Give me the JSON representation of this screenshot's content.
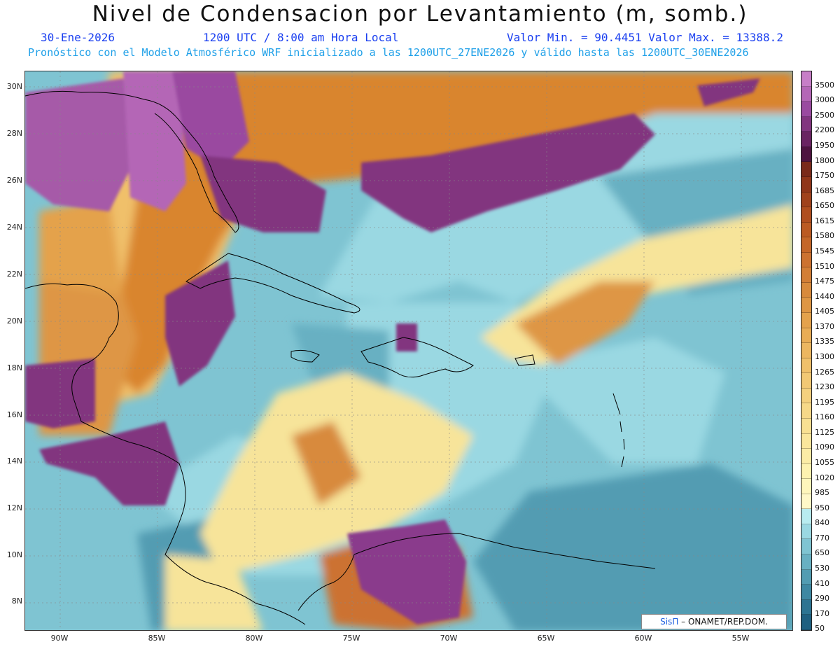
{
  "title": "Nivel de Condensacion por Levantamiento (m, somb.)",
  "subtitle_date": "30-Ene-2026",
  "subtitle_time": "1200 UTC / 8:00 am Hora Local",
  "subtitle_minmax": "Valor Min. = 90.4451   Valor Max. = 13388.2",
  "subtitle_forecast": "Pronóstico con el Modelo Atmosférico WRF inicializado a las 1200UTC_27ENE2026 y válido hasta las  1200UTC_30ENE2026",
  "credit": {
    "sis": "SisΠ",
    "rest": " – ONAMET/REP.DOM."
  },
  "lat_labels": [
    "30N",
    "28N",
    "26N",
    "24N",
    "22N",
    "20N",
    "18N",
    "16N",
    "14N",
    "12N",
    "10N",
    "8N"
  ],
  "lon_labels": [
    "90W",
    "85W",
    "80W",
    "75W",
    "70W",
    "65W",
    "60W",
    "55W"
  ],
  "colorbar": {
    "labels": [
      "3500",
      "3000",
      "2500",
      "2200",
      "1950",
      "1800",
      "1750",
      "1685",
      "1650",
      "1615",
      "1580",
      "1545",
      "1510",
      "1475",
      "1440",
      "1405",
      "1370",
      "1335",
      "1300",
      "1265",
      "1230",
      "1195",
      "1160",
      "1125",
      "1090",
      "1055",
      "1020",
      "985",
      "950",
      "840",
      "770",
      "650",
      "530",
      "410",
      "290",
      "170",
      "50"
    ],
    "colors": [
      "#c77ec7",
      "#b466b6",
      "#9a4aa0",
      "#82357f",
      "#6a2462",
      "#4e1440",
      "#7a2a1a",
      "#90361a",
      "#a0421c",
      "#b04e1f",
      "#bb5a22",
      "#c46628",
      "#cc7230",
      "#d27e36",
      "#d88a3c",
      "#de9644",
      "#e4a24c",
      "#e8ac55",
      "#ecb660",
      "#f0c06a",
      "#f2c874",
      "#f4d07e",
      "#f6d888",
      "#f8e092",
      "#fae69c",
      "#fbeca6",
      "#fdf2b0",
      "#fef6bc",
      "#fff8c8",
      "#b8ecf0",
      "#9ad8e2",
      "#7fc4d2",
      "#68b0c2",
      "#529cb2",
      "#3e88a2",
      "#2d7492",
      "#1f6080"
    ]
  },
  "colors": {
    "ocean_low": "#5fa8bc",
    "ocean_mid": "#8fd3df",
    "yellow": "#f7e49a",
    "orange": "#d9852f",
    "purple": "#8a3a8c",
    "coast": "#000000"
  }
}
